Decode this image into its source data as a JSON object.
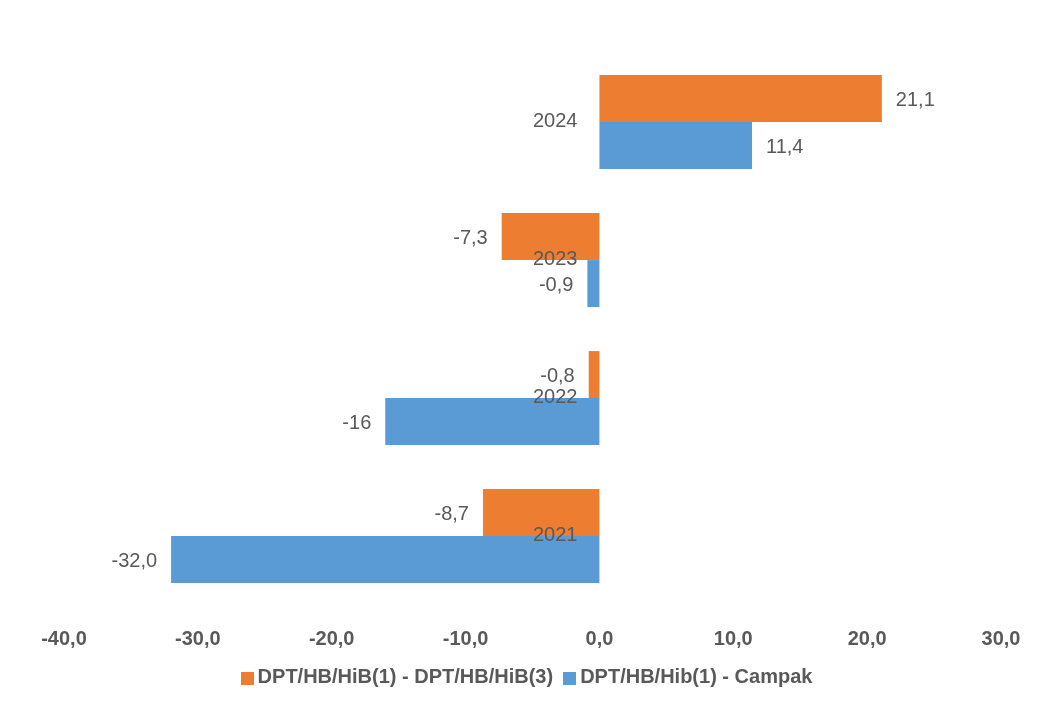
{
  "chart_data": {
    "type": "bar",
    "orientation": "horizontal",
    "categories": [
      "2024",
      "2023",
      "2022",
      "2021"
    ],
    "series": [
      {
        "name": "DPT/HB/HiB(1) - DPT/HB/HiB(3)",
        "color": "#ed7d31",
        "values": [
          21.1,
          -7.3,
          -0.8,
          -8.7
        ],
        "value_labels": [
          "21,1",
          "-7,3",
          "-0,8",
          "-8,7"
        ]
      },
      {
        "name": "DPT/HB/Hib(1) - Campak",
        "color": "#5b9bd5",
        "values": [
          11.4,
          -0.9,
          -16,
          -32.0
        ],
        "value_labels": [
          "11,4",
          "-0,9",
          "-16",
          "-32,0"
        ]
      }
    ],
    "xlim": [
      -40,
      30
    ],
    "xticks": [
      {
        "value": -40,
        "label": "-40,0"
      },
      {
        "value": -30,
        "label": "-30,0"
      },
      {
        "value": -20,
        "label": "-20,0"
      },
      {
        "value": -10,
        "label": "-10,0"
      },
      {
        "value": 0,
        "label": "0,0"
      },
      {
        "value": 10,
        "label": "10,0"
      },
      {
        "value": 20,
        "label": "20,0"
      },
      {
        "value": 30,
        "label": "30,0"
      }
    ],
    "grid": false,
    "legend": "bottom"
  }
}
